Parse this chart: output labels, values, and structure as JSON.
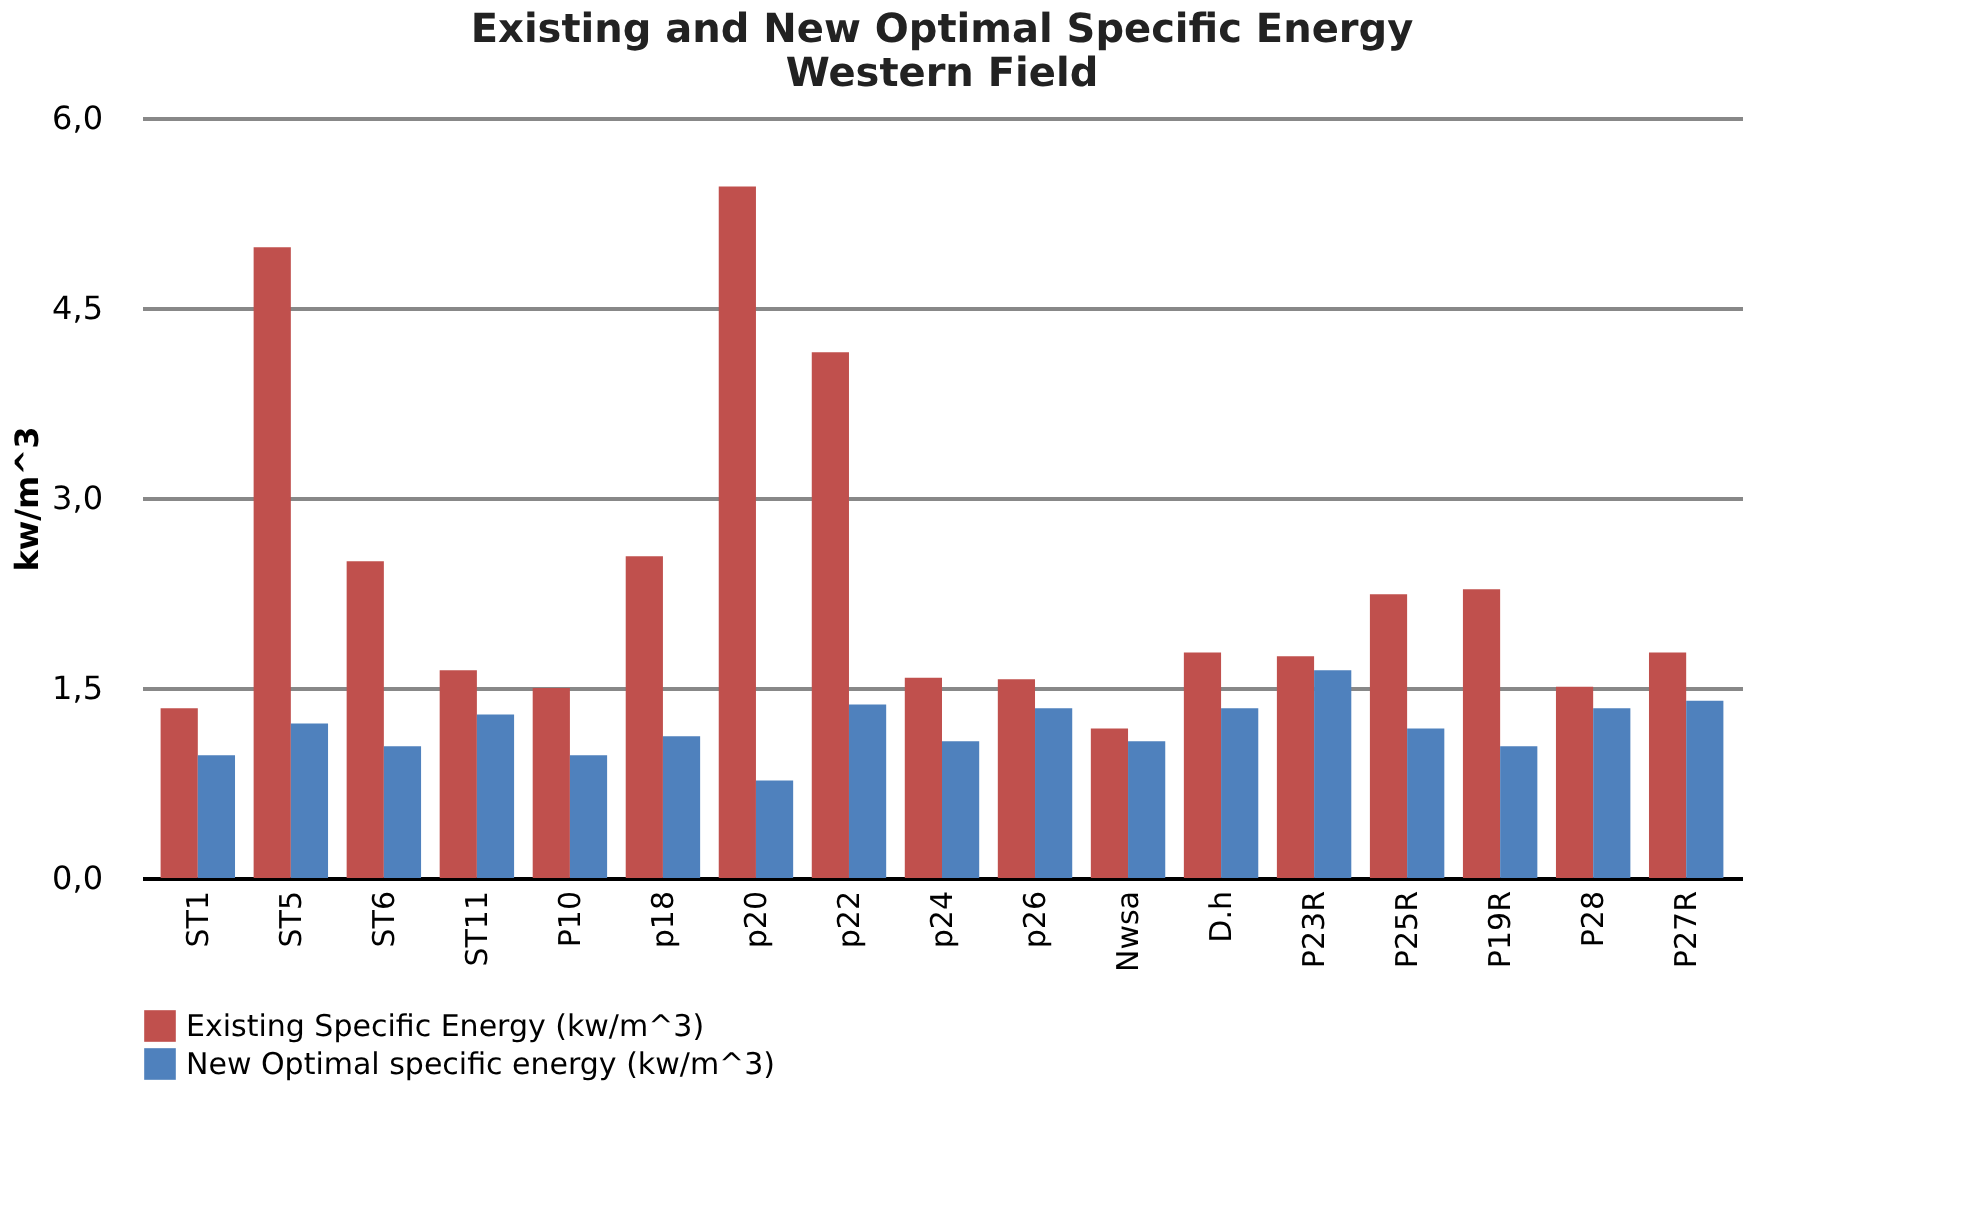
{
  "chart_data": {
    "type": "bar",
    "title": "Existing and New Optimal Specific Energy\nWestern Field",
    "ylabel": "kw/m^3",
    "categories": [
      "ST1",
      "ST5",
      "ST6",
      "ST11",
      "P10",
      "p18",
      "p20",
      "p22",
      "p24",
      "p26",
      "Nwsa",
      "D.h",
      "P23R",
      "P25R",
      "P19R",
      "P28",
      "P27R"
    ],
    "series": [
      {
        "name": "Existing Specific Energy (kw/m^3)",
        "color": "#c0504d",
        "values": [
          1.34,
          4.98,
          2.5,
          1.64,
          1.5,
          2.54,
          5.46,
          4.15,
          1.58,
          1.57,
          1.18,
          1.78,
          1.75,
          2.24,
          2.28,
          1.51,
          1.78
        ]
      },
      {
        "name": "New Optimal specific energy (kw/m^3)",
        "color": "#4f81bd",
        "values": [
          0.97,
          1.22,
          1.04,
          1.29,
          0.97,
          1.12,
          0.77,
          1.37,
          1.08,
          1.34,
          1.08,
          1.34,
          1.64,
          1.18,
          1.04,
          1.34,
          1.4
        ]
      }
    ],
    "ylim": [
      0,
      6
    ],
    "yticks": [
      {
        "value": 0,
        "label": "0,0"
      },
      {
        "value": 1.5,
        "label": "1,5"
      },
      {
        "value": 3,
        "label": "3,0"
      },
      {
        "value": 4.5,
        "label": "4,5"
      },
      {
        "value": 6,
        "label": "6,0"
      }
    ],
    "grid": "y",
    "legend": "bottom"
  }
}
